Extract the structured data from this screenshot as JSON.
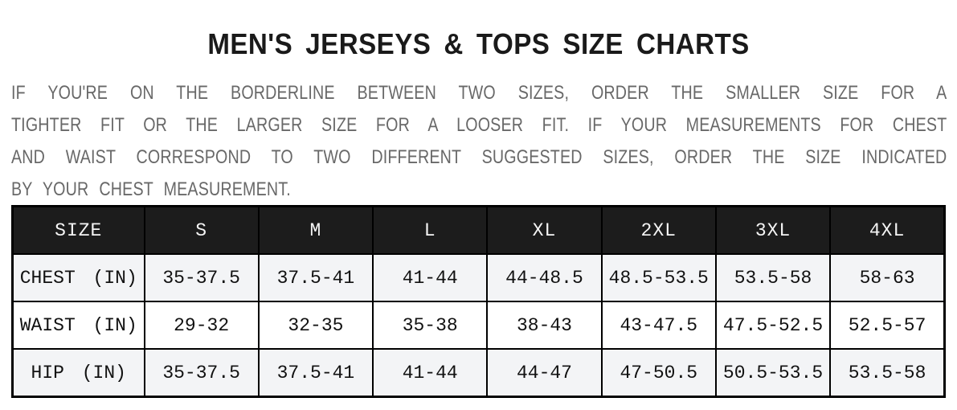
{
  "title": "MEN'S JERSEYS & TOPS SIZE CHARTS",
  "intro": {
    "lines": [
      "IF YOU'RE ON THE BORDERLINE BETWEEN TWO SIZES, ORDER THE SMALLER SIZE FOR A",
      "TIGHTER FIT OR THE LARGER SIZE FOR A LOOSER FIT. IF YOUR MEASUREMENTS FOR CHEST",
      "AND WAIST CORRESPOND TO TWO DIFFERENT SUGGESTED SIZES, ORDER THE SIZE INDICATED",
      "BY YOUR CHEST MEASUREMENT."
    ]
  },
  "table": {
    "headers": [
      "SIZE",
      "S",
      "M",
      "L",
      "XL",
      "2XL",
      "3XL",
      "4XL"
    ],
    "rows": [
      {
        "label": "CHEST (IN)",
        "values": [
          "35-37.5",
          "37.5-41",
          "41-44",
          "44-48.5",
          "48.5-53.5",
          "53.5-58",
          "58-63"
        ]
      },
      {
        "label": "WAIST (IN)",
        "values": [
          "29-32",
          "32-35",
          "35-38",
          "38-43",
          "43-47.5",
          "47.5-52.5",
          "52.5-57"
        ]
      },
      {
        "label": "HIP (IN)",
        "values": [
          "35-37.5",
          "37.5-41",
          "41-44",
          "44-47",
          "47-50.5",
          "50.5-53.5",
          "53.5-58"
        ]
      }
    ]
  },
  "colors": {
    "title_text": "#1a1a1a",
    "intro_text": "#686868",
    "header_bg": "#1c1c1c",
    "header_text": "#f5f5f5",
    "row_alt_bg": "#f3f4f6",
    "row_bg": "#ffffff",
    "border": "#000000"
  }
}
